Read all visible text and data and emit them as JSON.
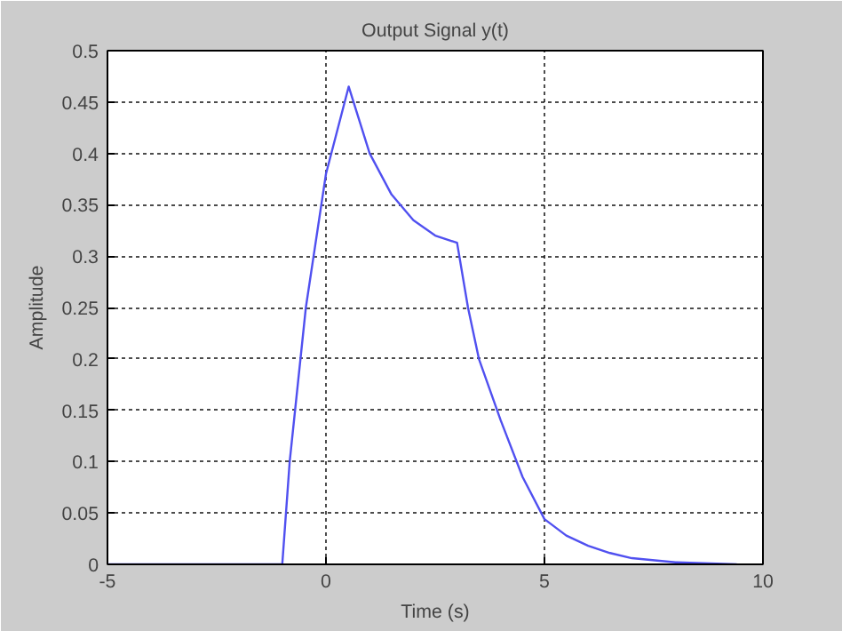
{
  "chart_data": {
    "type": "line",
    "title": "Output Signal y(t)",
    "xlabel": "Time (s)",
    "ylabel": "Amplitude",
    "x": [
      -5,
      -1,
      -0.83,
      -0.46,
      0,
      0.52,
      1,
      1.5,
      2,
      2.5,
      3,
      3.25,
      3.5,
      4,
      4.5,
      5,
      5.5,
      6,
      6.5,
      7,
      8,
      9.4
    ],
    "series": [
      {
        "color": "#5050f0",
        "values": [
          0,
          0,
          0.1,
          0.25,
          0.38,
          0.465,
          0.4,
          0.36,
          0.335,
          0.32,
          0.313,
          0.25,
          0.2,
          0.14,
          0.085,
          0.044,
          0.028,
          0.018,
          0.011,
          0.006,
          0.002,
          0
        ]
      }
    ],
    "xlim": [
      -5,
      10
    ],
    "ylim": [
      0,
      0.5
    ],
    "xticks": [
      {
        "value": -5,
        "label": "-5"
      },
      0,
      5,
      10
    ],
    "yticks": [
      0,
      0.05,
      0.1,
      0.15,
      0.2,
      0.25,
      0.3,
      0.35,
      0.4,
      0.45,
      0.5
    ],
    "grid": true,
    "line_style": "solid"
  }
}
